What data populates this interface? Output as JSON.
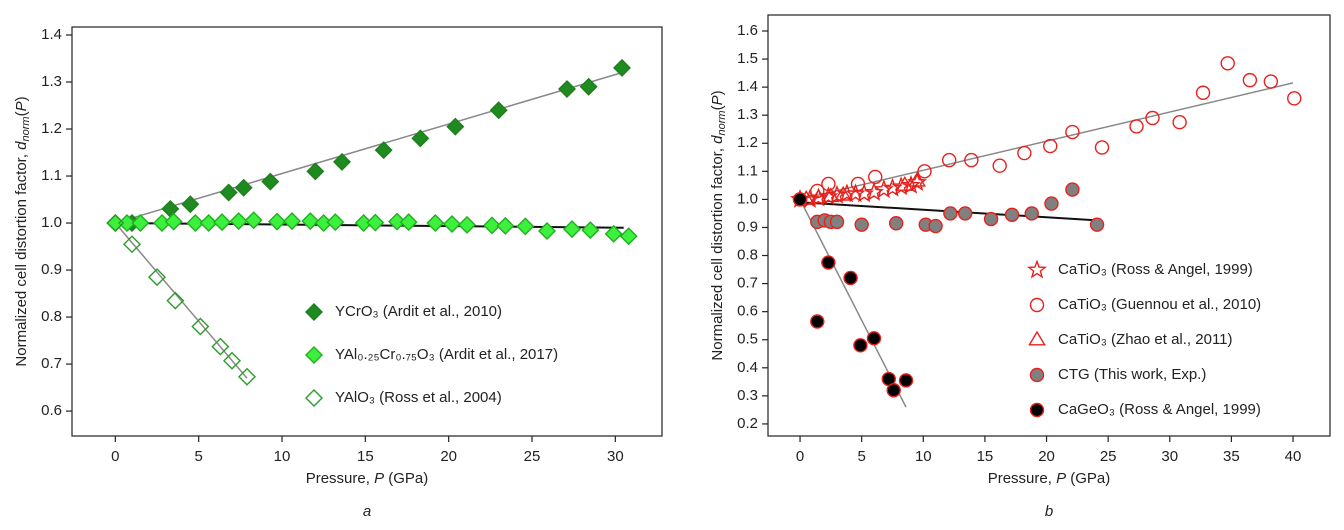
{
  "chart_data": [
    {
      "type": "scatter",
      "caption": "a",
      "xlabel": [
        "Pressure, ",
        "P",
        " (GPa)"
      ],
      "ylabel": [
        "Normalized cell distortion factor, ",
        "d",
        "norm",
        "(",
        "P",
        ")"
      ],
      "xlim": [
        -2.6,
        32.8
      ],
      "ylim": [
        0.547,
        1.417
      ],
      "xticks": [
        0,
        5,
        10,
        15,
        20,
        25,
        30
      ],
      "yticks": [
        0.6,
        0.7,
        0.8,
        0.9,
        {
          "value": 1.0,
          "label": "1.0"
        },
        1.1,
        1.2,
        1.3,
        1.4
      ],
      "legend": "lower right",
      "series": [
        {
          "name": "YCrO₃ (Ardit et al., 2010)",
          "marker": "diamond",
          "color": "#1f7f1f",
          "fill": "#1f8a1f",
          "x": [
            0,
            1,
            3.3,
            4.5,
            6.8,
            7.7,
            9.3,
            12,
            13.6,
            16.1,
            18.3,
            20.4,
            23,
            27.1,
            28.4,
            30.4
          ],
          "values": [
            1.0,
            1.0,
            1.03,
            1.04,
            1.065,
            1.075,
            1.088,
            1.11,
            1.13,
            1.155,
            1.18,
            1.205,
            1.24,
            1.285,
            1.29,
            1.33
          ]
        },
        {
          "name": "YAl₀.₂₅Cr₀.₇₅O₃ (Ardit et al., 2017)",
          "marker": "diamond",
          "color": "#20b020",
          "fill": "#3df03d",
          "x": [
            0,
            0.7,
            1.5,
            2.8,
            3.5,
            4.8,
            5.6,
            6.4,
            7.4,
            8.3,
            9.7,
            10.6,
            11.7,
            12.5,
            13.2,
            14.9,
            15.6,
            16.9,
            17.6,
            19.2,
            20.2,
            21.1,
            22.6,
            23.4,
            24.6,
            25.9,
            27.4,
            28.5,
            29.9,
            30.8
          ],
          "values": [
            1.0,
            1.0,
            1.0,
            1.0,
            1.003,
            1.0,
            1.0,
            1.002,
            1.004,
            1.006,
            1.003,
            1.004,
            1.004,
            1.0,
            1.002,
            1.0,
            1.001,
            1.003,
            1.002,
            1.0,
            0.998,
            0.996,
            0.995,
            0.994,
            0.993,
            0.983,
            0.987,
            0.985,
            0.977,
            0.972
          ]
        },
        {
          "name": "YAlO₃ (Ross et al., 2004)",
          "marker": "diamond",
          "color": "#2a9d2a",
          "fill": "none",
          "x": [
            0,
            1,
            2.5,
            3.6,
            5.1,
            6.3,
            7,
            7.9
          ],
          "values": [
            1.0,
            0.955,
            0.885,
            0.835,
            0.78,
            0.737,
            0.707,
            0.673
          ]
        }
      ],
      "fit_lines": [
        {
          "color": "#888888",
          "x": [
            0,
            30.4
          ],
          "values": [
            1.0,
            1.32
          ]
        },
        {
          "color": "#111111",
          "x": [
            0,
            30.5
          ],
          "values": [
            1.0,
            0.99
          ]
        },
        {
          "color": "#888888",
          "x": [
            0,
            7.9
          ],
          "values": [
            1.0,
            0.67
          ]
        }
      ]
    },
    {
      "type": "scatter",
      "caption": "b",
      "xlabel": [
        "Pressure, ",
        "P",
        " (GPa)"
      ],
      "ylabel": [
        "Normalized cell distortion factor, ",
        "d",
        "norm",
        "(",
        "P",
        ")"
      ],
      "xlim": [
        -2.6,
        43.0
      ],
      "ylim": [
        0.157,
        1.657
      ],
      "xticks": [
        0,
        5,
        10,
        15,
        20,
        25,
        30,
        35,
        40
      ],
      "yticks": [
        0.2,
        0.3,
        0.4,
        0.5,
        0.6,
        0.7,
        0.8,
        0.9,
        {
          "value": 1.0,
          "label": "1.0"
        },
        1.1,
        1.2,
        1.3,
        1.4,
        1.5,
        1.6
      ],
      "legend": "lower right",
      "series": [
        {
          "name": "CaTiO₃ (Ross & Angel, 1999)",
          "marker": "star",
          "color": "#e8201c",
          "fill": "none",
          "x": [
            0,
            0.8,
            1.5,
            2.3,
            3,
            3.8,
            4.5,
            5.2,
            6,
            6.8,
            7.5,
            8.2,
            9,
            9.5
          ],
          "values": [
            1.0,
            1.0,
            1.005,
            1.01,
            1.015,
            1.02,
            1.02,
            1.02,
            1.025,
            1.035,
            1.04,
            1.045,
            1.05,
            1.06
          ]
        },
        {
          "name": "CaTiO₃ (Guennou et al., 2010)",
          "marker": "circle",
          "color": "#e8201c",
          "fill": "none",
          "x": [
            1.4,
            2.3,
            4.7,
            6.1,
            10.1,
            12.1,
            13.9,
            16.2,
            18.2,
            20.3,
            22.1,
            24.5,
            27.3,
            28.6,
            30.8,
            32.7,
            34.7,
            36.5,
            38.2,
            40.1
          ],
          "values": [
            1.03,
            1.055,
            1.055,
            1.08,
            1.1,
            1.14,
            1.14,
            1.12,
            1.165,
            1.19,
            1.24,
            1.185,
            1.26,
            1.29,
            1.275,
            1.38,
            1.485,
            1.425,
            1.42,
            1.36
          ]
        },
        {
          "name": "CaTiO₃ (Zhao et al., 2011)",
          "marker": "triangle",
          "color": "#e8201c",
          "fill": "none",
          "x": [
            0.5,
            1.5,
            2.5,
            3.5,
            8.5,
            9.5
          ],
          "values": [
            1.0,
            1.005,
            1.01,
            1.015,
            1.05,
            1.065
          ]
        },
        {
          "name": "CTG (This work, Exp.)",
          "marker": "circle",
          "color": "#e8201c",
          "fill": "#808080",
          "x": [
            0,
            1.4,
            2,
            2.5,
            3,
            5,
            7.8,
            10.2,
            11,
            12.2,
            13.4,
            15.5,
            17.2,
            18.8,
            20.4,
            22.1,
            24.1
          ],
          "values": [
            1.0,
            0.92,
            0.925,
            0.92,
            0.92,
            0.91,
            0.915,
            0.91,
            0.905,
            0.95,
            0.95,
            0.93,
            0.945,
            0.95,
            0.985,
            1.035,
            0.91
          ]
        },
        {
          "name": "CaGeO₃ (Ross & Angel, 1999)",
          "marker": "circle",
          "color": "#e8201c",
          "fill": "#000000",
          "x": [
            0,
            1.4,
            2.3,
            4.1,
            4.9,
            6,
            7.2,
            7.6,
            8.6
          ],
          "values": [
            1.0,
            0.565,
            0.775,
            0.72,
            0.48,
            0.505,
            0.36,
            0.32,
            0.355
          ]
        }
      ],
      "fit_lines": [
        {
          "color": "#888888",
          "x": [
            0,
            40
          ],
          "values": [
            1.0,
            1.415
          ]
        },
        {
          "color": "#111111",
          "x": [
            0,
            24.1
          ],
          "values": [
            0.99,
            0.925
          ]
        },
        {
          "color": "#888888",
          "x": [
            0,
            8.6
          ],
          "values": [
            1.0,
            0.26
          ]
        }
      ]
    }
  ]
}
